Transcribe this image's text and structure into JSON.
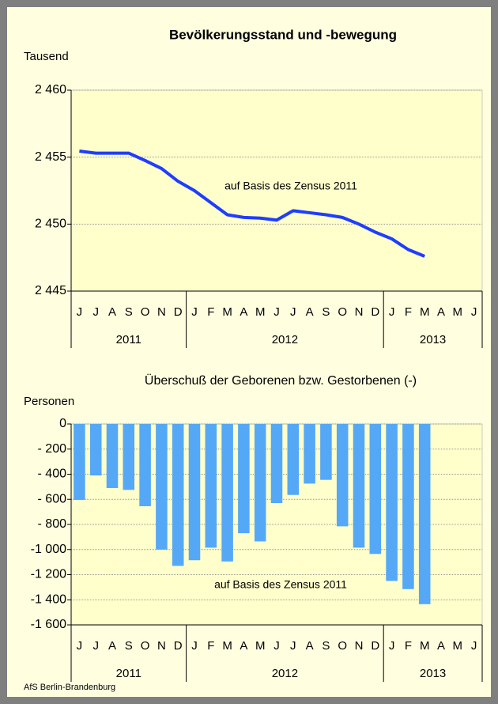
{
  "title": "Bevölkerungsstand und -bewegung",
  "footer": "AfS Berlin-Brandenburg",
  "chart_data": [
    {
      "type": "line",
      "ylabel": "Tausend",
      "annotation": "auf Basis des Zensus 2011",
      "color": "#1f3dff",
      "groups": [
        {
          "label": "2011",
          "categories": [
            "J",
            "J",
            "A",
            "S",
            "O",
            "N",
            "D"
          ]
        },
        {
          "label": "2012",
          "categories": [
            "J",
            "F",
            "M",
            "A",
            "M",
            "J",
            "J",
            "A",
            "S",
            "O",
            "N",
            "D"
          ]
        },
        {
          "label": "2013",
          "categories": [
            "J",
            "F",
            "M",
            "A",
            "M",
            "J"
          ]
        }
      ],
      "values": [
        2455.45,
        2455.3,
        2455.3,
        2455.3,
        2454.75,
        2454.15,
        2453.2,
        2452.5,
        2451.6,
        2450.7,
        2450.5,
        2450.45,
        2450.3,
        2451.0,
        2450.85,
        2450.7,
        2450.5,
        2450.0,
        2449.4,
        2448.9,
        2448.1,
        2447.6,
        null,
        null,
        null
      ],
      "ylim": [
        2445,
        2460
      ],
      "yticks": [
        {
          "value": 2445,
          "label": "2 445"
        },
        {
          "value": 2450,
          "label": "2 450"
        },
        {
          "value": 2455,
          "label": "2 455"
        },
        {
          "value": 2460,
          "label": "2 460"
        }
      ],
      "grid": true
    },
    {
      "type": "bar",
      "title": "Überschuß der Geborenen bzw. Gestorbenen (-)",
      "ylabel": "Personen",
      "annotation": "auf Basis des Zensus 2011",
      "color": "#55a8f5",
      "groups": [
        {
          "label": "2011",
          "categories": [
            "J",
            "J",
            "A",
            "S",
            "O",
            "N",
            "D"
          ]
        },
        {
          "label": "2012",
          "categories": [
            "J",
            "F",
            "M",
            "A",
            "M",
            "J",
            "J",
            "A",
            "S",
            "O",
            "N",
            "D"
          ]
        },
        {
          "label": "2013",
          "categories": [
            "J",
            "F",
            "M",
            "A",
            "M",
            "J"
          ]
        }
      ],
      "values": [
        -605,
        -410,
        -510,
        -525,
        -655,
        -1000,
        -1130,
        -1085,
        -985,
        -1095,
        -870,
        -935,
        -630,
        -565,
        -475,
        -445,
        -815,
        -985,
        -1035,
        -1250,
        -1315,
        -1435,
        null,
        null,
        null
      ],
      "ylim": [
        -1600,
        0
      ],
      "yticks": [
        {
          "value": -1600,
          "label": "-1 600"
        },
        {
          "value": -1400,
          "label": "-1 400"
        },
        {
          "value": -1200,
          "label": "-1 200"
        },
        {
          "value": -1000,
          "label": "-1 000"
        },
        {
          "value": -800,
          "label": "- 800"
        },
        {
          "value": -600,
          "label": "- 600"
        },
        {
          "value": -400,
          "label": "- 400"
        },
        {
          "value": -200,
          "label": "- 200"
        },
        0
      ],
      "grid": true
    }
  ]
}
